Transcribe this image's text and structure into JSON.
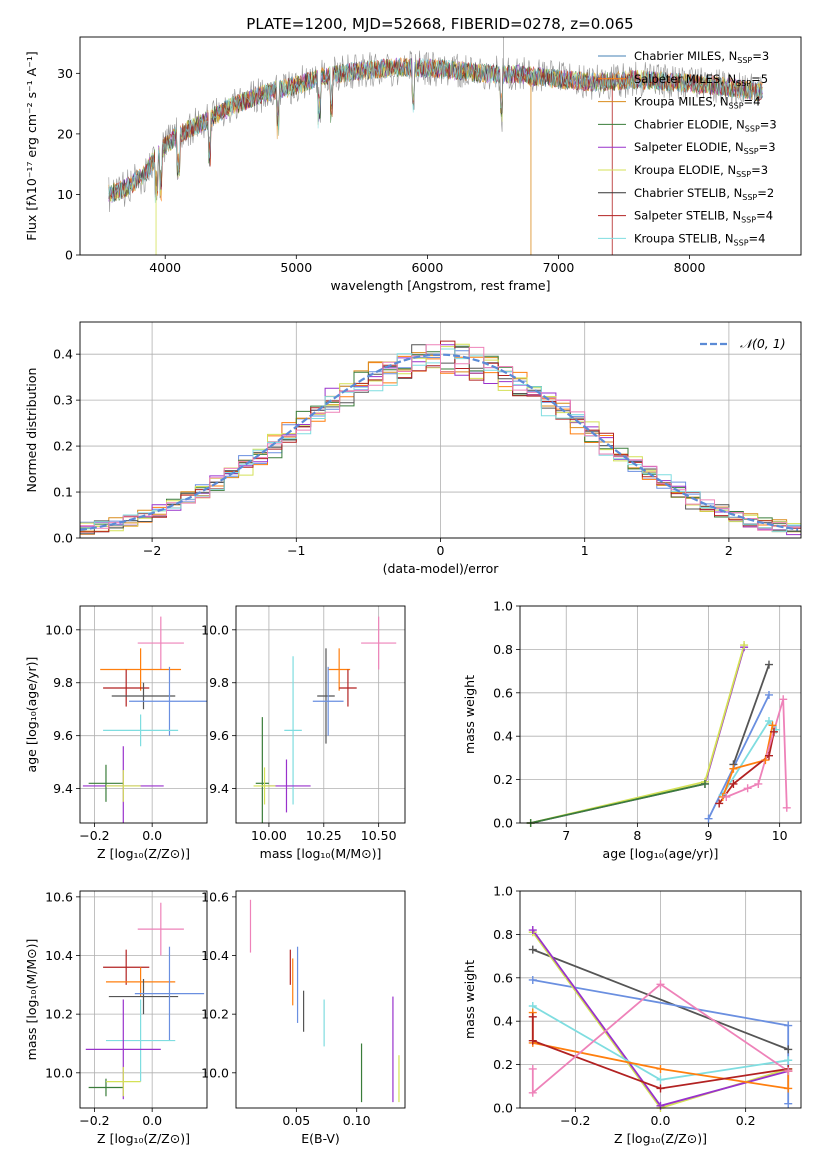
{
  "figure_title": "PLATE=1200, MJD=52668, FIBERID=0278, z=0.065",
  "chart_data": [
    {
      "id": "spectrum",
      "type": "line",
      "xlabel": "wavelength [Angstrom, rest frame]",
      "ylabel": "Flux [fλ10⁻¹⁷ erg cm⁻² s⁻¹ A⁻¹]",
      "xlim": [
        3350,
        8850
      ],
      "ylim": [
        0,
        36
      ],
      "xticks": [
        4000,
        5000,
        6000,
        7000,
        8000
      ],
      "yticks": [
        0,
        10,
        20,
        30
      ],
      "grid": false,
      "legend_position": "upper right",
      "legend": [
        {
          "label": "Chabrier MILES, N",
          "sub": "SSP",
          "tail": "=3",
          "color": "#4682b4"
        },
        {
          "label": "Salpeter MILES, N",
          "sub": "SSP",
          "tail": "=5",
          "color": "#ff7f0e"
        },
        {
          "label": "Kroupa MILES, N",
          "sub": "SSP",
          "tail": "=4",
          "color": "#d98b1c"
        },
        {
          "label": "Chabrier ELODIE, N",
          "sub": "SSP",
          "tail": "=3",
          "color": "#3a7d3a"
        },
        {
          "label": "Salpeter ELODIE, N",
          "sub": "SSP",
          "tail": "=3",
          "color": "#9932cc"
        },
        {
          "label": "Kroupa ELODIE, N",
          "sub": "SSP",
          "tail": "=3",
          "color": "#d4e157"
        },
        {
          "label": "Chabrier STELIB, N",
          "sub": "SSP",
          "tail": "=2",
          "color": "#333333"
        },
        {
          "label": "Salpeter STELIB, N",
          "sub": "SSP",
          "tail": "=4",
          "color": "#b22222"
        },
        {
          "label": "Kroupa STELIB, N",
          "sub": "SSP",
          "tail": "=4",
          "color": "#7fdde0"
        }
      ],
      "continuum": [
        [
          3570,
          10
        ],
        [
          3700,
          11
        ],
        [
          3850,
          13.5
        ],
        [
          3950,
          17
        ],
        [
          4100,
          20
        ],
        [
          4300,
          22
        ],
        [
          4500,
          24.5
        ],
        [
          4800,
          27
        ],
        [
          5000,
          28
        ],
        [
          5200,
          29.5
        ],
        [
          5500,
          30.5
        ],
        [
          5800,
          31
        ],
        [
          6100,
          30.8
        ],
        [
          6400,
          30
        ],
        [
          6700,
          29.8
        ],
        [
          7000,
          29
        ],
        [
          7300,
          28.5
        ],
        [
          7600,
          29
        ],
        [
          7900,
          28.5
        ],
        [
          8200,
          28
        ],
        [
          8500,
          27
        ]
      ]
    },
    {
      "id": "residuals",
      "type": "histogram",
      "xlabel": "(data-model)/error",
      "ylabel": "Normed distribution",
      "xlim": [
        -2.5,
        2.5
      ],
      "ylim": [
        0,
        0.47
      ],
      "xticks": [
        -2,
        -1,
        0,
        1,
        2
      ],
      "yticks": [
        0.0,
        0.1,
        0.2,
        0.3,
        0.4
      ],
      "grid": true,
      "legend_position": "upper right",
      "legend": [
        {
          "label": "𝒩(0, 1)",
          "color": "#5b8bd6"
        }
      ],
      "bin_width": 0.1,
      "series_colors": [
        "#6a8fe0",
        "#ff7f0e",
        "#d98b1c",
        "#3a7d3a",
        "#9932cc",
        "#d4e157",
        "#555555",
        "#b22222",
        "#7fdde0",
        "#ee82b9"
      ]
    },
    {
      "id": "age-vs-Z",
      "type": "errorbar",
      "xlabel": "Z [log₁₀(Z/Z⊙)]",
      "ylabel": "age [log₁₀(age/yr)]",
      "xlim": [
        -0.25,
        0.19
      ],
      "ylim": [
        9.27,
        10.09
      ],
      "xticks": [
        -0.2,
        0.0
      ],
      "yticks": [
        9.4,
        9.6,
        9.8,
        10.0
      ],
      "grid": true,
      "points": [
        {
          "x": 0.03,
          "y": 9.95,
          "xerr": 0.08,
          "yerr": 0.1,
          "color": "#ee82b9"
        },
        {
          "x": -0.04,
          "y": 9.85,
          "xerr": 0.14,
          "yerr": 0.08,
          "color": "#ff7f0e"
        },
        {
          "x": -0.09,
          "y": 9.78,
          "xerr": 0.08,
          "yerr": 0.07,
          "color": "#b22222"
        },
        {
          "x": -0.03,
          "y": 9.75,
          "xerr": 0.11,
          "yerr": 0.05,
          "color": "#555555"
        },
        {
          "x": 0.06,
          "y": 9.73,
          "xerr": 0.14,
          "yerr": 0.13,
          "color": "#6a8fe0"
        },
        {
          "x": -0.04,
          "y": 9.62,
          "xerr": 0.13,
          "yerr": 0.06,
          "color": "#7fdde0"
        },
        {
          "x": -0.1,
          "y": 9.41,
          "xerr": 0.14,
          "yerr": 0.15,
          "color": "#9932cc"
        },
        {
          "x": -0.16,
          "y": 9.42,
          "xerr": 0.06,
          "yerr": 0.07,
          "color": "#3a7d3a"
        },
        {
          "x": -0.1,
          "y": 9.41,
          "xerr": 0.06,
          "yerr": 0.06,
          "color": "#d4e157"
        }
      ]
    },
    {
      "id": "age-vs-mass",
      "type": "errorbar",
      "xlabel": "mass [log₁₀(M/M⊙)]",
      "xlim": [
        9.85,
        10.62
      ],
      "ylim": [
        9.27,
        10.09
      ],
      "xticks": [
        10.0,
        10.25,
        10.5
      ],
      "yticks": [
        9.4,
        9.6,
        9.8,
        10.0
      ],
      "grid": true,
      "points": [
        {
          "x": 10.5,
          "y": 9.95,
          "xerr": 0.08,
          "yerr": 0.1,
          "color": "#ee82b9"
        },
        {
          "x": 10.32,
          "y": 9.85,
          "xerr": 0.05,
          "yerr": 0.08,
          "color": "#ff7f0e"
        },
        {
          "x": 10.36,
          "y": 9.78,
          "xerr": 0.04,
          "yerr": 0.07,
          "color": "#b22222"
        },
        {
          "x": 10.26,
          "y": 9.75,
          "xerr": 0.04,
          "yerr": 0.18,
          "color": "#555555"
        },
        {
          "x": 10.27,
          "y": 9.73,
          "xerr": 0.07,
          "yerr": 0.13,
          "color": "#6a8fe0"
        },
        {
          "x": 10.11,
          "y": 9.62,
          "xerr": 0.04,
          "yerr": 0.28,
          "color": "#7fdde0"
        },
        {
          "x": 10.08,
          "y": 9.41,
          "xerr": 0.11,
          "yerr": 0.1,
          "color": "#9932cc"
        },
        {
          "x": 9.97,
          "y": 9.42,
          "xerr": 0.03,
          "yerr": 0.25,
          "color": "#3a7d3a"
        },
        {
          "x": 9.98,
          "y": 9.41,
          "xerr": 0.05,
          "yerr": 0.07,
          "color": "#d4e157"
        }
      ]
    },
    {
      "id": "weight-vs-age",
      "type": "line",
      "xlabel": "age [log₁₀(age/yr)]",
      "ylabel": "mass weight",
      "xlim": [
        6.35,
        10.3
      ],
      "ylim": [
        0,
        1
      ],
      "xticks": [
        7,
        8,
        9,
        10
      ],
      "yticks": [
        0.0,
        0.2,
        0.4,
        0.6,
        0.8,
        1.0
      ],
      "grid": true,
      "series": [
        {
          "x": [
            6.5,
            8.95,
            9.5
          ],
          "y": [
            0.0,
            0.18,
            0.81
          ],
          "color": "#9932cc"
        },
        {
          "x": [
            6.5,
            8.95,
            9.5
          ],
          "y": [
            0.0,
            0.19,
            0.82
          ],
          "color": "#d4e157"
        },
        {
          "x": [
            6.5,
            8.95
          ],
          "y": [
            0.0,
            0.18
          ],
          "color": "#3a7d3a"
        },
        {
          "x": [
            9.35,
            9.85
          ],
          "y": [
            0.27,
            0.73
          ],
          "color": "#555555"
        },
        {
          "x": [
            9.0,
            9.85
          ],
          "y": [
            0.02,
            0.59
          ],
          "color": "#6a8fe0"
        },
        {
          "x": [
            9.2,
            9.85,
            9.95
          ],
          "y": [
            0.13,
            0.47,
            0.43
          ],
          "color": "#7fdde0"
        },
        {
          "x": [
            9.2,
            9.35,
            9.8,
            9.9
          ],
          "y": [
            0.12,
            0.25,
            0.29,
            0.45
          ],
          "color": "#ff7f0e"
        },
        {
          "x": [
            9.15,
            9.35,
            9.85,
            9.92
          ],
          "y": [
            0.09,
            0.18,
            0.31,
            0.42
          ],
          "color": "#b22222"
        },
        {
          "x": [
            9.25,
            9.55,
            9.7,
            10.05,
            10.1
          ],
          "y": [
            0.12,
            0.16,
            0.18,
            0.57,
            0.07
          ],
          "color": "#ee82b9"
        }
      ]
    },
    {
      "id": "mass-vs-Z",
      "type": "errorbar",
      "xlabel": "Z [log₁₀(Z/Z⊙)]",
      "ylabel": "mass [log₁₀(M/M⊙)]",
      "xlim": [
        -0.25,
        0.19
      ],
      "ylim": [
        9.88,
        10.62
      ],
      "xticks": [
        -0.2,
        0.0
      ],
      "yticks": [
        10.0,
        10.2,
        10.4,
        10.6
      ],
      "grid": true,
      "points": [
        {
          "x": 0.03,
          "y": 10.49,
          "xerr": 0.08,
          "yerr": 0.09,
          "color": "#ee82b9"
        },
        {
          "x": -0.09,
          "y": 10.36,
          "xerr": 0.08,
          "yerr": 0.06,
          "color": "#b22222"
        },
        {
          "x": -0.04,
          "y": 10.31,
          "xerr": 0.12,
          "yerr": 0.05,
          "color": "#ff7f0e"
        },
        {
          "x": -0.03,
          "y": 10.26,
          "xerr": 0.12,
          "yerr": 0.06,
          "color": "#555555"
        },
        {
          "x": 0.06,
          "y": 10.27,
          "xerr": 0.12,
          "yerr": 0.16,
          "color": "#6a8fe0"
        },
        {
          "x": -0.04,
          "y": 10.11,
          "xerr": 0.12,
          "yerr": 0.14,
          "color": "#7fdde0"
        },
        {
          "x": -0.1,
          "y": 10.08,
          "xerr": 0.13,
          "yerr": 0.17,
          "color": "#9932cc"
        },
        {
          "x": -0.16,
          "y": 9.95,
          "xerr": 0.06,
          "yerr": 0.03,
          "color": "#3a7d3a"
        },
        {
          "x": -0.1,
          "y": 9.97,
          "xerr": 0.06,
          "yerr": 0.05,
          "color": "#d4e157"
        }
      ]
    },
    {
      "id": "mass-vs-ebv",
      "type": "errorbar",
      "xlabel": "E(B-V)",
      "xlim": [
        0.0,
        0.14
      ],
      "ylim": [
        9.88,
        10.62
      ],
      "xticks": [
        0.05,
        0.1
      ],
      "yticks": [
        10.0,
        10.2,
        10.4,
        10.6
      ],
      "grid": false,
      "points": [
        {
          "x": 0.012,
          "y": 10.5,
          "xerr": 0,
          "yerr": 0.09,
          "color": "#ee82b9"
        },
        {
          "x": 0.045,
          "y": 10.36,
          "xerr": 0,
          "yerr": 0.06,
          "color": "#b22222"
        },
        {
          "x": 0.047,
          "y": 10.31,
          "xerr": 0,
          "yerr": 0.08,
          "color": "#ff7f0e"
        },
        {
          "x": 0.056,
          "y": 10.21,
          "xerr": 0,
          "yerr": 0.07,
          "color": "#555555"
        },
        {
          "x": 0.051,
          "y": 10.3,
          "xerr": 0,
          "yerr": 0.13,
          "color": "#6a8fe0"
        },
        {
          "x": 0.073,
          "y": 10.17,
          "xerr": 0,
          "yerr": 0.08,
          "color": "#7fdde0"
        },
        {
          "x": 0.13,
          "y": 10.08,
          "xerr": 0,
          "yerr": 0.18,
          "color": "#9932cc"
        },
        {
          "x": 0.104,
          "y": 10.0,
          "xerr": 0,
          "yerr": 0.1,
          "color": "#3a7d3a"
        },
        {
          "x": 0.135,
          "y": 9.98,
          "xerr": 0,
          "yerr": 0.08,
          "color": "#d4e157"
        }
      ]
    },
    {
      "id": "weight-vs-Z",
      "type": "line",
      "xlabel": "Z [log₁₀(Z/Z⊙)]",
      "ylabel": "mass weight",
      "xlim": [
        -0.33,
        0.33
      ],
      "ylim": [
        0,
        1
      ],
      "xticks": [
        -0.2,
        0.0,
        0.2
      ],
      "yticks": [
        0.0,
        0.2,
        0.4,
        0.6,
        0.8,
        1.0
      ],
      "grid": true,
      "series": [
        {
          "x": [
            -0.3,
            0.3
          ],
          "y": [
            0.73,
            0.27
          ],
          "color": "#555555"
        },
        {
          "x": [
            -0.3,
            0.3,
            0.3
          ],
          "y": [
            0.59,
            0.38,
            0.02
          ],
          "color": "#6a8fe0"
        },
        {
          "x": [
            -0.3,
            0.0,
            0.3
          ],
          "y": [
            0.81,
            0.0,
            0.18
          ],
          "color": "#d4e157"
        },
        {
          "x": [
            -0.3,
            0.0,
            0.3
          ],
          "y": [
            0.82,
            0.01,
            0.17
          ],
          "color": "#9932cc"
        },
        {
          "x": [
            -0.3,
            0.0,
            0.3
          ],
          "y": [
            0.47,
            0.13,
            0.22
          ],
          "color": "#7fdde0"
        },
        {
          "x": [
            -0.3,
            -0.3,
            0.0,
            0.3,
            0.3
          ],
          "y": [
            0.44,
            0.3,
            0.18,
            0.09,
            0.17
          ],
          "color": "#ff7f0e"
        },
        {
          "x": [
            -0.3,
            -0.3,
            0.0,
            0.3
          ],
          "y": [
            0.42,
            0.31,
            0.09,
            0.18
          ],
          "color": "#b22222"
        },
        {
          "x": [
            -0.3,
            -0.3,
            0.0,
            0.3
          ],
          "y": [
            0.18,
            0.07,
            0.57,
            0.17
          ],
          "color": "#ee82b9"
        }
      ]
    }
  ]
}
